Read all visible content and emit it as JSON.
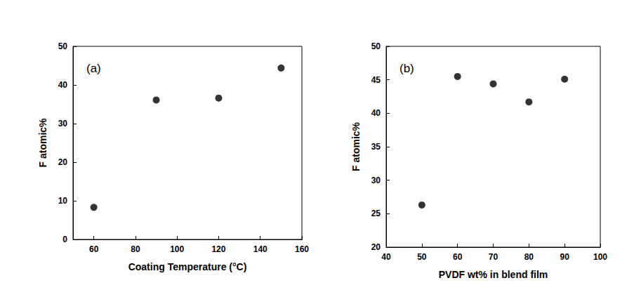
{
  "chart_data": [
    {
      "type": "scatter",
      "annotation": "(a)",
      "x_label": "Coating Temperature (°C)",
      "y_label": "F atomic%",
      "x": [
        60,
        90,
        120,
        150
      ],
      "values": [
        8.3,
        36.1,
        36.6,
        44.4
      ],
      "color": "#000000",
      "marker": "circle",
      "xlim": [
        50,
        160
      ],
      "xticks": [
        60,
        80,
        100,
        120,
        140,
        160
      ],
      "ylim": [
        0,
        50
      ],
      "yticks": [
        0,
        10,
        20,
        30,
        40,
        50
      ],
      "grid": false
    },
    {
      "type": "scatter",
      "annotation": "(b)",
      "x_label": "PVDF wt% in blend film",
      "y_label": "F atomic%",
      "x": [
        50,
        60,
        70,
        80,
        90
      ],
      "values": [
        26.3,
        45.5,
        44.4,
        41.7,
        45.1
      ],
      "color": "#000000",
      "marker": "circle",
      "xlim": [
        40,
        100
      ],
      "xticks": [
        40,
        50,
        60,
        70,
        80,
        90,
        100
      ],
      "ylim": [
        20,
        50
      ],
      "yticks": [
        20,
        25,
        30,
        35,
        40,
        45,
        50
      ],
      "grid": false
    }
  ]
}
